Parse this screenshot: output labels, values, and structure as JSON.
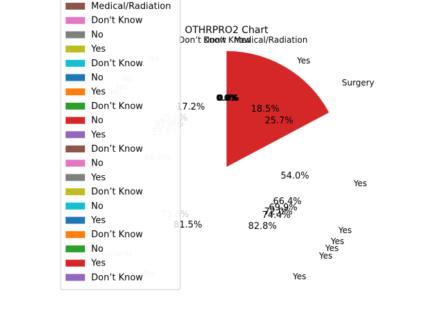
{
  "chart_data": [
    {
      "type": "pie",
      "title": "",
      "slices": [
        {
          "label": "No",
          "percent": 33.6,
          "color": "#2ca02c"
        },
        {
          "label": "Natural",
          "percent": 46.0,
          "color": "#2ca02c"
        },
        {
          "label": "No",
          "percent": 0.0,
          "color": "#2ca02c"
        },
        {
          "label": "Yes",
          "percent": 18.5,
          "color": "#d62728"
        },
        {
          "label": "Surgery",
          "percent": 25.7,
          "color": "#d62728"
        }
      ],
      "autopct_extra": [
        "17.2%",
        "25.0%",
        "27.0%",
        "30.0%",
        "0.0%",
        "54.0%",
        "66.4%",
        "69.9%",
        "72.0%",
        "74.4%",
        "82.8%",
        "73.6%",
        "81.5%"
      ],
      "outer_labels": [
        "Don't Know",
        "Don't Know",
        "Medical/Radiation",
        "Yes",
        "Yes",
        "Yes",
        "Yes",
        "Yes",
        "Yes",
        "Yes",
        "No",
        "No",
        "No",
        "No",
        "No"
      ]
    }
  ],
  "chart": {
    "title": "OTHRPRO2 Chart",
    "top_labels": [
      "Don’t Know",
      "Don't Know",
      "Medical/Radiation"
    ],
    "zero_labels": [
      "0.0%",
      "0.0%",
      "0.0%",
      "0.6%"
    ]
  },
  "legend": {
    "items": [
      {
        "label": "Medical/Radiation",
        "color": "#8c564b"
      },
      {
        "label": "Don't Know",
        "color": "#e377c2"
      },
      {
        "label": "No",
        "color": "#7f7f7f"
      },
      {
        "label": "Yes",
        "color": "#bcbd22"
      },
      {
        "label": "Don’t Know",
        "color": "#17becf"
      },
      {
        "label": "No",
        "color": "#1f77b4"
      },
      {
        "label": "Yes",
        "color": "#ff7f0e"
      },
      {
        "label": "Don’t Know",
        "color": "#2ca02c"
      },
      {
        "label": "No",
        "color": "#d62728"
      },
      {
        "label": "Yes",
        "color": "#9467bd"
      },
      {
        "label": "Don’t Know",
        "color": "#8c564b"
      },
      {
        "label": "No",
        "color": "#e377c2"
      },
      {
        "label": "Yes",
        "color": "#7f7f7f"
      },
      {
        "label": "Don’t Know",
        "color": "#bcbd22"
      },
      {
        "label": "No",
        "color": "#17becf"
      },
      {
        "label": "Yes",
        "color": "#1f77b4"
      },
      {
        "label": "Don’t Know",
        "color": "#ff7f0e"
      },
      {
        "label": "No",
        "color": "#2ca02c"
      },
      {
        "label": "Yes",
        "color": "#d62728"
      },
      {
        "label": "Don’t Know",
        "color": "#9467bd"
      }
    ]
  },
  "pie_labels": {
    "outer": [
      "Yes",
      "Surgery",
      "Yes",
      "Yes",
      "Yes",
      "Yes",
      "Yes",
      "Yes",
      "No",
      "No",
      "No",
      "No",
      "Natural",
      "No"
    ],
    "inner": [
      "18.5%",
      "25.7%",
      "54.0%",
      "66.4%",
      "69.9%",
      "72.0%",
      "74.4%",
      "82.8%",
      "17.2%",
      "25.0%",
      "27.0%",
      "30.0%",
      "33.6%",
      "46.0%",
      "73.6%",
      "81.5%"
    ]
  }
}
